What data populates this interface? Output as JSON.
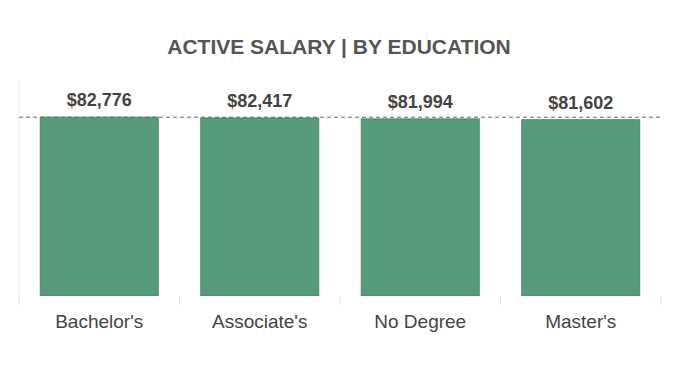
{
  "chart_data": {
    "type": "bar",
    "title": "ACTIVE SALARY | BY EDUCATION",
    "categories": [
      "Bachelor's",
      "Associate's",
      "No Degree",
      "Master's"
    ],
    "values": [
      82776,
      82417,
      81994,
      81602
    ],
    "value_labels": [
      "$82,776",
      "$82,417",
      "$81,994",
      "$81,602"
    ],
    "color": "#559a7b",
    "ylim": [
      0,
      100000
    ],
    "grid": false,
    "data_labels": true,
    "tick_labels": "x"
  }
}
